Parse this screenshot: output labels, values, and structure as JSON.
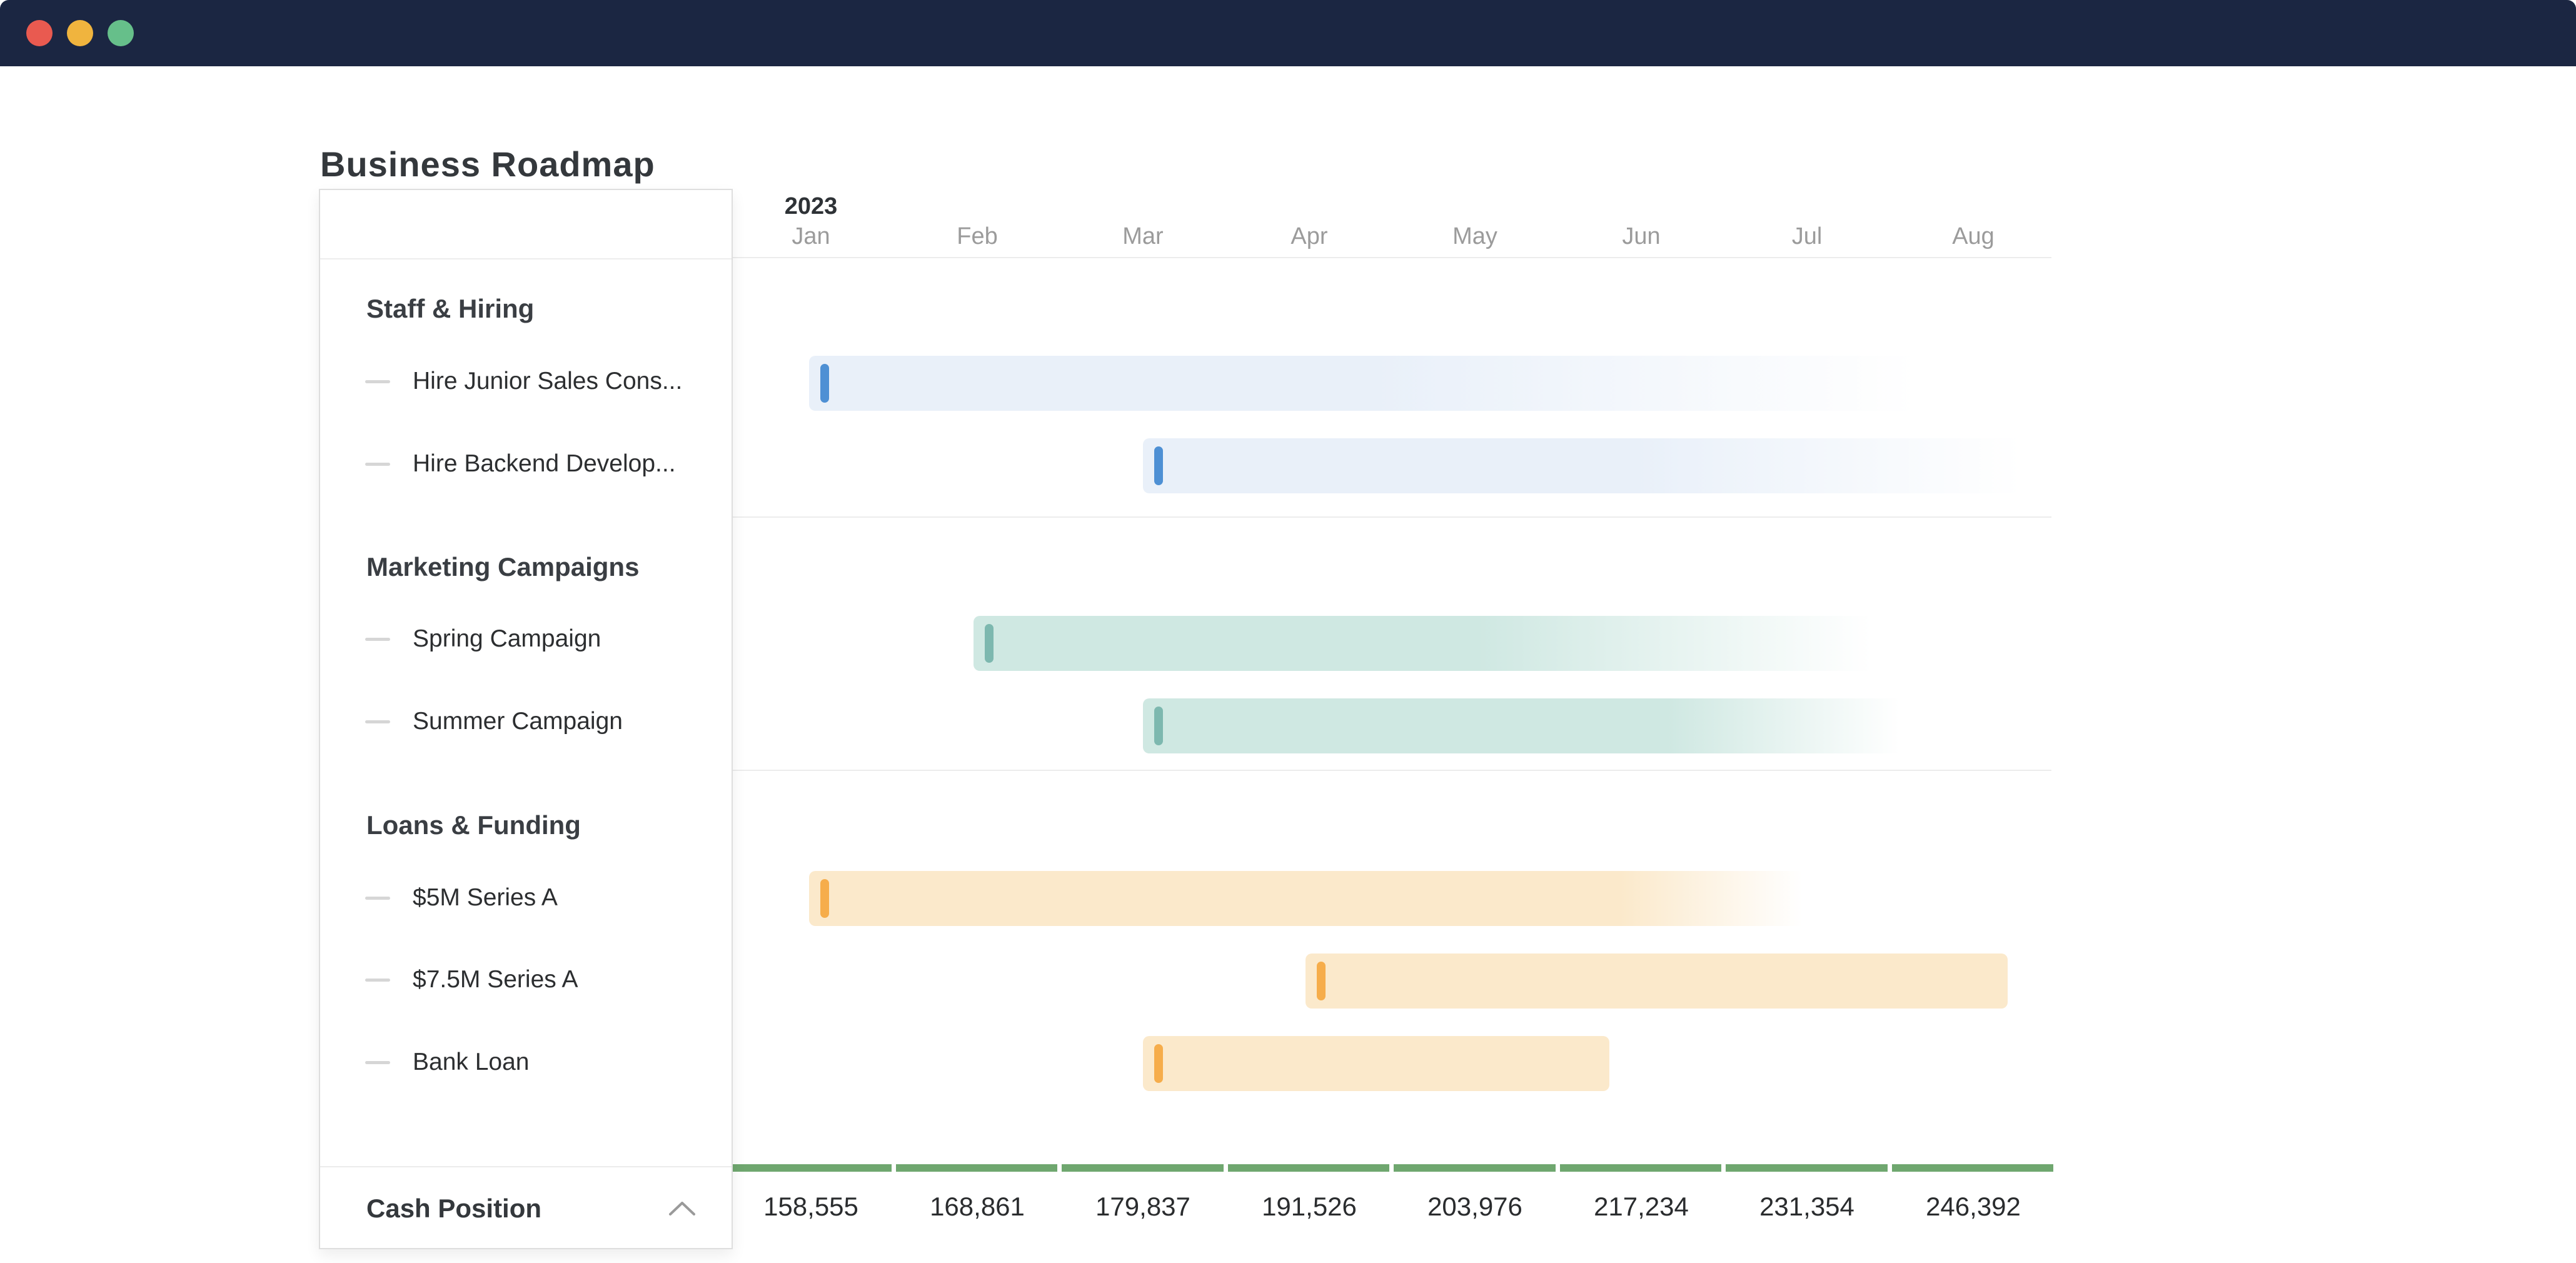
{
  "window": {
    "titlebar_color": "#1b2642",
    "traffic_lights": [
      {
        "name": "close-window-button",
        "color": "#e95a50"
      },
      {
        "name": "minimize-window-button",
        "color": "#f0b43e"
      },
      {
        "name": "zoom-window-button",
        "color": "#66bf8a"
      }
    ]
  },
  "page": {
    "title": "Business Roadmap"
  },
  "chart_data": {
    "type": "gantt",
    "title": "Business Roadmap",
    "year": "2023",
    "months": [
      "Jan",
      "Feb",
      "Mar",
      "Apr",
      "May",
      "Jun",
      "Jul",
      "Aug"
    ],
    "legend_position": "left-sidebar",
    "grid": "group-row-separators-only",
    "groups": [
      {
        "name": "Staff & Hiring",
        "bar_color": "#E9F0F9",
        "tick_color": "#4E90D4",
        "tasks": [
          {
            "name": "Hire Junior Sales Cons...",
            "start_month": 0.49,
            "end_month": 7.3,
            "fades_out": true,
            "fade_from": 0.5
          },
          {
            "name": "Hire Backend Develop...",
            "start_month": 2.5,
            "end_month": 7.9,
            "fades_out": true,
            "fade_from": 0.55
          }
        ]
      },
      {
        "name": "Marketing Campaigns",
        "bar_color": "#CFE8E2",
        "tick_color": "#7DB8AF",
        "tasks": [
          {
            "name": "Spring Campaign",
            "start_month": 1.48,
            "end_month": 7.0,
            "fades_out": true,
            "fade_from": 0.55
          },
          {
            "name": "Summer Campaign",
            "start_month": 2.5,
            "end_month": 7.15,
            "fades_out": true,
            "fade_from": 0.68
          }
        ]
      },
      {
        "name": "Loans & Funding",
        "bar_color": "#FBE9CB",
        "tick_color": "#F6AD4B",
        "tasks": [
          {
            "name": "$5M Series A",
            "start_month": 0.49,
            "end_month": 6.6,
            "fades_out": true,
            "fade_from": 0.8
          },
          {
            "name": "$7.5M Series A",
            "start_month": 3.48,
            "end_month": 7.71,
            "fades_out": false
          },
          {
            "name": "Bank Loan",
            "start_month": 2.5,
            "end_month": 5.31,
            "fades_out": false
          }
        ]
      }
    ],
    "cash_position": {
      "label": "Cash Position",
      "collapse_icon": "chevron-up",
      "bar_color": "#6FA76F",
      "labels": [
        "158,555",
        "168,861",
        "179,837",
        "191,526",
        "203,976",
        "217,234",
        "231,354",
        "246,392"
      ],
      "values": [
        158555,
        168861,
        179837,
        191526,
        203976,
        217234,
        231354,
        246392
      ]
    }
  }
}
